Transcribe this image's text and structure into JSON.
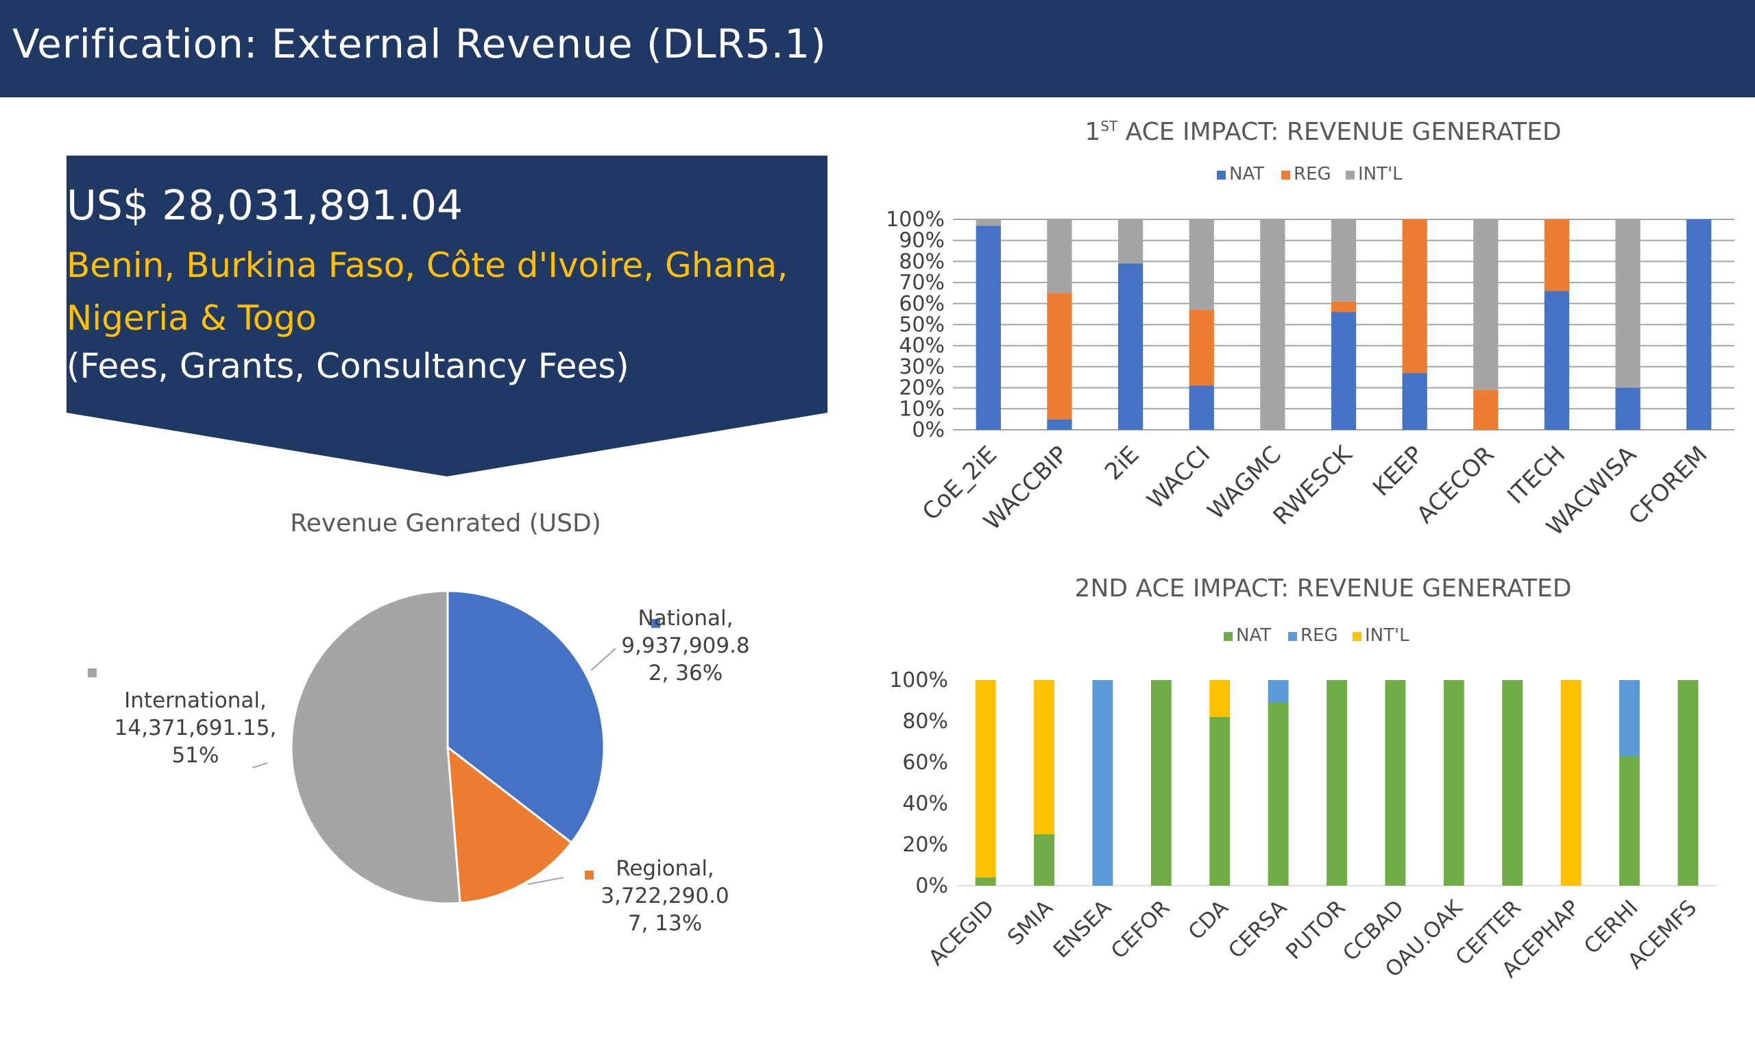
{
  "slide": {
    "title": "Verification: External Revenue (DLR5.1)"
  },
  "callout": {
    "amount": "US$ 28,031,891.04",
    "countries_line1": "Benin, Burkina Faso, Côte d'Ivoire, Ghana,",
    "countries_line2": "Nigeria & Togo",
    "sources": "(Fees, Grants, Consultancy Fees)",
    "fill": "#203864",
    "highlight": "#FFC000"
  },
  "chart_data": [
    {
      "type": "pie",
      "title": "Revenue Genrated (USD)",
      "slices": [
        {
          "name": "National",
          "value": 9937909.82,
          "label": [
            "National,",
            "9,937,909.8",
            "2, 36%"
          ],
          "percent": 36,
          "color": "#4472C4"
        },
        {
          "name": "Regional",
          "value": 3722290.07,
          "label": [
            "Regional,",
            "3,722,290.0",
            "7, 13%"
          ],
          "percent": 13,
          "color": "#ED7D31"
        },
        {
          "name": "International",
          "value": 14371691.15,
          "label": [
            "International,",
            "14,371,691.15,",
            "51%"
          ],
          "percent": 51,
          "color": "#A5A5A5"
        }
      ]
    },
    {
      "type": "bar",
      "stacked": "percent",
      "title_main": "1",
      "title_sup": "ST",
      "title_rest": " ACE IMPACT: REVENUE GENERATED",
      "categories": [
        "CoE_2iE",
        "WACCBIP",
        "2iE",
        "WACCI",
        "WAGMC",
        "RWESCK",
        "KEEP",
        "ACECOR",
        "ITECH",
        "WACWISA",
        "CFOREM"
      ],
      "series": [
        {
          "name": "NAT",
          "color": "#4472C4",
          "values": [
            97,
            5,
            79,
            21,
            0,
            56,
            27,
            0,
            66,
            20,
            100
          ]
        },
        {
          "name": "REG",
          "color": "#ED7D31",
          "values": [
            0,
            60,
            0,
            36,
            0,
            5,
            73,
            19,
            34,
            0,
            0
          ]
        },
        {
          "name": "INT'L",
          "color": "#A5A5A5",
          "values": [
            3,
            35,
            21,
            43,
            100,
            39,
            0,
            81,
            0,
            80,
            0
          ]
        }
      ],
      "yticks": [
        "0%",
        "10%",
        "20%",
        "30%",
        "40%",
        "50%",
        "60%",
        "70%",
        "80%",
        "90%",
        "100%"
      ],
      "ylim": [
        0,
        100
      ],
      "grid": true,
      "legend": "top"
    },
    {
      "type": "bar",
      "stacked": "percent",
      "title": "2ND ACE IMPACT: REVENUE GENERATED",
      "categories": [
        "ACEGID",
        "SMIA",
        "ENSEA",
        "CEFOR",
        "CDA",
        "CERSA",
        "PUTOR",
        "CCBAD",
        "OAU.OAK",
        "CEFTER",
        "ACEPHAP",
        "CERHI",
        "ACEMFS"
      ],
      "series": [
        {
          "name": "NAT",
          "color": "#70AD47",
          "values": [
            4,
            25,
            0,
            100,
            82,
            89,
            100,
            100,
            100,
            100,
            0,
            63,
            100
          ]
        },
        {
          "name": "REG",
          "color": "#5B9BD5",
          "values": [
            0,
            0,
            100,
            0,
            0,
            11,
            0,
            0,
            0,
            0,
            0,
            37,
            0
          ]
        },
        {
          "name": "INT'L",
          "color": "#FFC000",
          "values": [
            96,
            75,
            0,
            0,
            18,
            0,
            0,
            0,
            0,
            0,
            100,
            0,
            0
          ]
        }
      ],
      "yticks": [
        "0%",
        "20%",
        "40%",
        "60%",
        "80%",
        "100%"
      ],
      "ylim": [
        0,
        100
      ],
      "grid": false,
      "legend": "top"
    }
  ]
}
